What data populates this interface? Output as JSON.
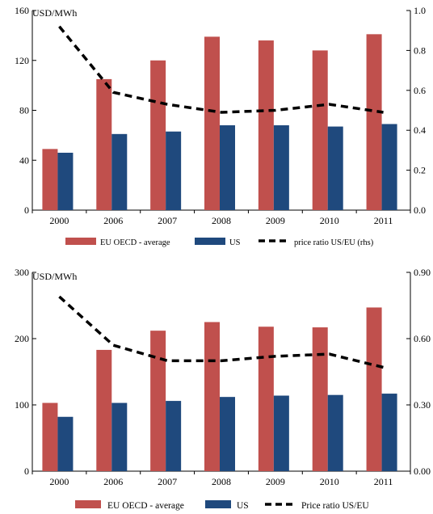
{
  "colors": {
    "eu": "#c0504d",
    "us": "#1f497d",
    "ratio": "#000000"
  },
  "chart_data": [
    {
      "type": "bar",
      "unit_label": "USD/MWh",
      "categories": [
        "2000",
        "2006",
        "2007",
        "2008",
        "2009",
        "2010",
        "2011"
      ],
      "series": [
        {
          "name": "EU OECD - average",
          "kind": "bar",
          "axis": "left",
          "values": [
            49,
            105,
            120,
            139,
            136,
            128,
            141
          ]
        },
        {
          "name": "US",
          "kind": "bar",
          "axis": "left",
          "values": [
            46,
            61,
            63,
            68,
            68,
            67,
            69
          ]
        },
        {
          "name": "price ratio US/EU (rhs)",
          "kind": "line",
          "style": "dashed",
          "axis": "right",
          "values": [
            0.92,
            0.59,
            0.53,
            0.49,
            0.5,
            0.53,
            0.49
          ]
        }
      ],
      "ylim_left": [
        0,
        160
      ],
      "yticks_left": [
        "0",
        "40",
        "80",
        "120",
        "160"
      ],
      "ylim_right": [
        0,
        1
      ],
      "yticks_right": [
        "0.0",
        "0.2",
        "0.4",
        "0.6",
        "0.8",
        "1.0"
      ],
      "legend_position": "bottom",
      "grid": false
    },
    {
      "type": "bar",
      "unit_label": "USD/MWh",
      "categories": [
        "2000",
        "2006",
        "2007",
        "2008",
        "2009",
        "2010",
        "2011"
      ],
      "series": [
        {
          "name": "EU OECD - average",
          "kind": "bar",
          "axis": "left",
          "values": [
            103,
            183,
            212,
            225,
            218,
            217,
            247
          ]
        },
        {
          "name": "US",
          "kind": "bar",
          "axis": "left",
          "values": [
            82,
            103,
            106,
            112,
            114,
            115,
            117
          ]
        },
        {
          "name": "Price ratio US/EU",
          "kind": "line",
          "style": "dashed",
          "axis": "right",
          "values": [
            0.79,
            0.57,
            0.5,
            0.5,
            0.52,
            0.53,
            0.47
          ]
        }
      ],
      "ylim_left": [
        0,
        300
      ],
      "yticks_left": [
        "0",
        "100",
        "200",
        "300"
      ],
      "ylim_right": [
        0,
        0.9
      ],
      "yticks_right": [
        "0.00",
        "0.30",
        "0.60",
        "0.90"
      ],
      "legend_position": "bottom",
      "grid": false
    }
  ]
}
